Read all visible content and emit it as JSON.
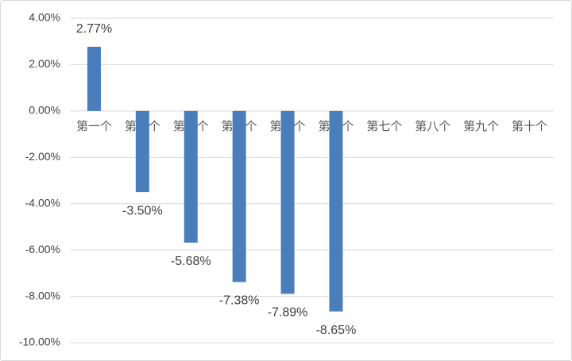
{
  "chart_data": {
    "type": "bar",
    "categories": [
      "第一个",
      "第二个",
      "第三个",
      "第四个",
      "第五个",
      "第六个",
      "第七个",
      "第八个",
      "第九个",
      "第十个"
    ],
    "values": [
      2.77,
      -3.5,
      -5.68,
      -7.38,
      -7.89,
      -8.65,
      null,
      null,
      null,
      null
    ],
    "value_labels": [
      "2.77%",
      "-3.50%",
      "-5.68%",
      "-7.38%",
      "-7.89%",
      "-8.65%",
      null,
      null,
      null,
      null
    ],
    "color": "#4a7ebb",
    "ylim": [
      -10,
      4
    ],
    "yticks": [
      {
        "value": -10,
        "label": "-10.00%"
      },
      {
        "value": -8,
        "label": "-8.00%"
      },
      {
        "value": -6,
        "label": "-6.00%"
      },
      {
        "value": -4,
        "label": "-4.00%"
      },
      {
        "value": -2,
        "label": "-2.00%"
      },
      {
        "value": 0,
        "label": "0.00%"
      },
      {
        "value": 2,
        "label": "2.00%"
      },
      {
        "value": 4,
        "label": "4.00%"
      }
    ],
    "grid": true
  }
}
